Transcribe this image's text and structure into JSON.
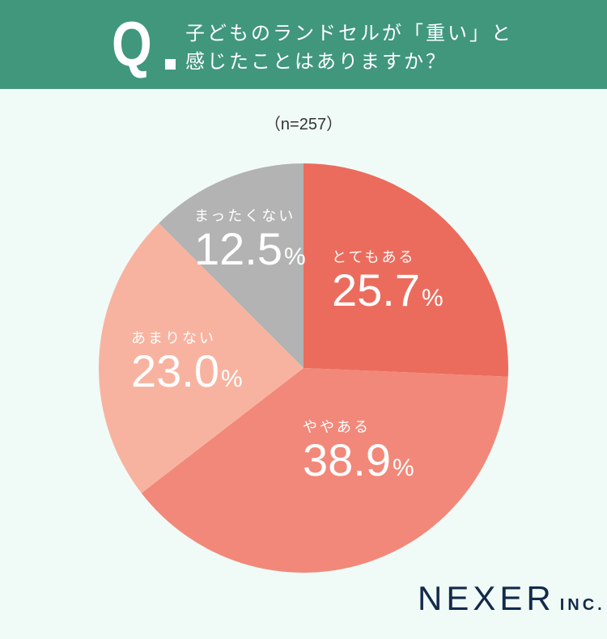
{
  "header": {
    "q_mark": "Q",
    "question_line1": "子どものランドセルが「重い」と",
    "question_line2": "感じたことはありますか？",
    "background_color": "#40977c"
  },
  "sample_size": "（n=257）",
  "chart_data": {
    "type": "pie",
    "title": "子どものランドセルが「重い」と感じたことはありますか？",
    "n": 257,
    "categories": [
      "とてもある",
      "ややある",
      "あまりない",
      "まったくない"
    ],
    "values": [
      25.7,
      38.9,
      23.0,
      12.5
    ],
    "value_labels": [
      "25.7",
      "38.9",
      "23.0",
      "12.5"
    ],
    "unit": "%",
    "colors": [
      "#eb6c5d",
      "#f2887a",
      "#f8b3a0",
      "#b3b3b3"
    ],
    "start_angle": "12 o'clock, clockwise",
    "legend": "inline labels on slices"
  },
  "labels": [
    {
      "category": "とてもある",
      "value": "25.7",
      "unit": "%"
    },
    {
      "category": "ややある",
      "value": "38.9",
      "unit": "%"
    },
    {
      "category": "あまりない",
      "value": "23.0",
      "unit": "%"
    },
    {
      "category": "まったくない",
      "value": "12.5",
      "unit": "%"
    }
  ],
  "logo": {
    "main": "NEXER",
    "suffix": "INC."
  }
}
